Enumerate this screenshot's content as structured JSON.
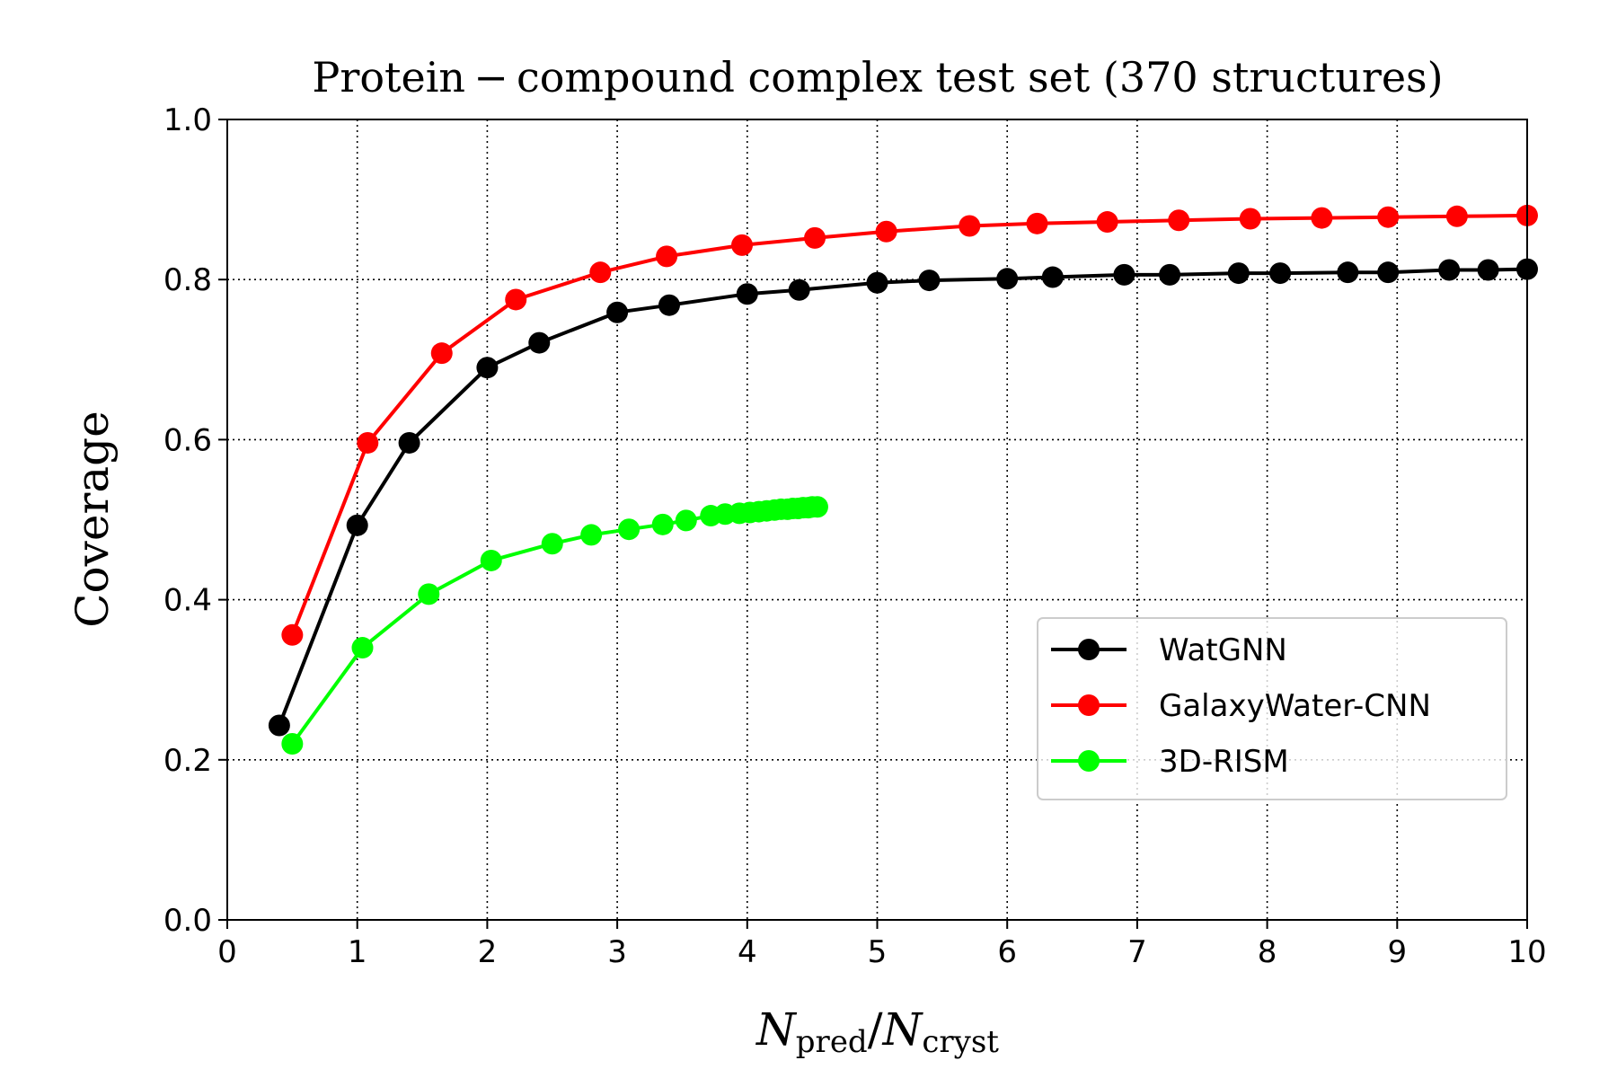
{
  "chart_data": {
    "type": "line",
    "title": "Protein − compound complex test set (370 structures)",
    "xlabel": {
      "main": "N",
      "sub1": "pred",
      "slash": "/",
      "main2": "N",
      "sub2": "cryst"
    },
    "ylabel": "Coverage",
    "xlim": [
      0,
      10
    ],
    "ylim": [
      0.0,
      1.0
    ],
    "xticks": [
      0,
      1,
      2,
      3,
      4,
      5,
      6,
      7,
      8,
      9,
      10
    ],
    "yticks": [
      0.0,
      0.2,
      0.4,
      0.6,
      0.8,
      1.0
    ],
    "xtick_labels": [
      "0",
      "1",
      "2",
      "3",
      "4",
      "5",
      "6",
      "7",
      "8",
      "9",
      "10"
    ],
    "ytick_labels": [
      "0.0",
      "0.2",
      "0.4",
      "0.6",
      "0.8",
      "1.0"
    ],
    "grid": true,
    "legend_position": "center-right",
    "series": [
      {
        "name": "WatGNN",
        "color": "#000000",
        "x": [
          0.4,
          1.0,
          1.4,
          2.0,
          2.4,
          3.0,
          3.4,
          4.0,
          4.4,
          5.0,
          5.4,
          6.0,
          6.35,
          6.9,
          7.25,
          7.78,
          8.1,
          8.62,
          8.93,
          9.4,
          9.7,
          10.0
        ],
        "y": [
          0.243,
          0.493,
          0.596,
          0.69,
          0.721,
          0.759,
          0.768,
          0.782,
          0.787,
          0.796,
          0.799,
          0.801,
          0.803,
          0.806,
          0.806,
          0.808,
          0.808,
          0.809,
          0.809,
          0.812,
          0.812,
          0.813
        ]
      },
      {
        "name": "GalaxyWater-CNN",
        "color": "#ff0000",
        "x": [
          0.5,
          1.08,
          1.65,
          2.22,
          2.87,
          3.38,
          3.96,
          4.52,
          5.07,
          5.71,
          6.23,
          6.77,
          7.32,
          7.87,
          8.42,
          8.93,
          9.46,
          10.0
        ],
        "y": [
          0.356,
          0.596,
          0.708,
          0.775,
          0.809,
          0.829,
          0.843,
          0.852,
          0.86,
          0.867,
          0.87,
          0.872,
          0.874,
          0.876,
          0.877,
          0.878,
          0.879,
          0.88
        ]
      },
      {
        "name": "3D-RISM",
        "color": "#00ff00",
        "x": [
          0.5,
          1.04,
          1.55,
          2.03,
          2.5,
          2.8,
          3.09,
          3.35,
          3.53,
          3.72,
          3.83,
          3.94,
          4.02,
          4.09,
          4.15,
          4.21,
          4.26,
          4.31,
          4.35,
          4.39,
          4.43,
          4.47,
          4.5,
          4.54
        ],
        "y": [
          0.22,
          0.34,
          0.407,
          0.449,
          0.47,
          0.481,
          0.488,
          0.494,
          0.499,
          0.505,
          0.507,
          0.508,
          0.509,
          0.51,
          0.511,
          0.512,
          0.513,
          0.513,
          0.514,
          0.514,
          0.515,
          0.515,
          0.516,
          0.516
        ]
      }
    ]
  }
}
